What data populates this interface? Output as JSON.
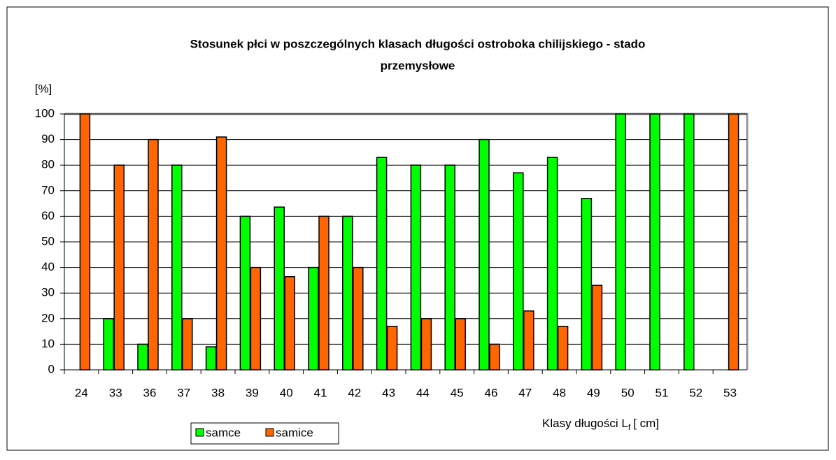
{
  "chart_data": {
    "type": "bar",
    "title": [
      "Stosunek płci w poszczególnych klasach długości ostroboka chilijskiego - stado",
      "przemysłowe"
    ],
    "y_label": "[%]",
    "x_label": {
      "main": "Klasy długości L",
      "sub": "f",
      "unit": "[ cm]"
    },
    "categories": [
      "24",
      "33",
      "36",
      "37",
      "38",
      "39",
      "40",
      "41",
      "42",
      "43",
      "44",
      "45",
      "46",
      "47",
      "48",
      "49",
      "50",
      "51",
      "52",
      "53"
    ],
    "series": [
      {
        "name": "samce",
        "color": "#00ff00",
        "values": [
          0,
          20,
          10,
          80,
          9,
          60,
          63.6,
          40,
          60,
          83,
          80,
          80,
          90,
          77,
          83,
          67,
          100,
          100,
          100,
          0
        ]
      },
      {
        "name": "samice",
        "color": "#ff6600",
        "values": [
          100,
          80,
          90,
          20,
          91,
          40,
          36.4,
          60,
          40,
          17,
          20,
          20,
          10,
          23,
          17,
          33,
          0,
          0,
          0,
          100
        ]
      }
    ],
    "ylim": [
      0,
      100
    ],
    "yticks": [
      0,
      10,
      20,
      30,
      40,
      50,
      60,
      70,
      80,
      90,
      100
    ],
    "grid": true
  }
}
